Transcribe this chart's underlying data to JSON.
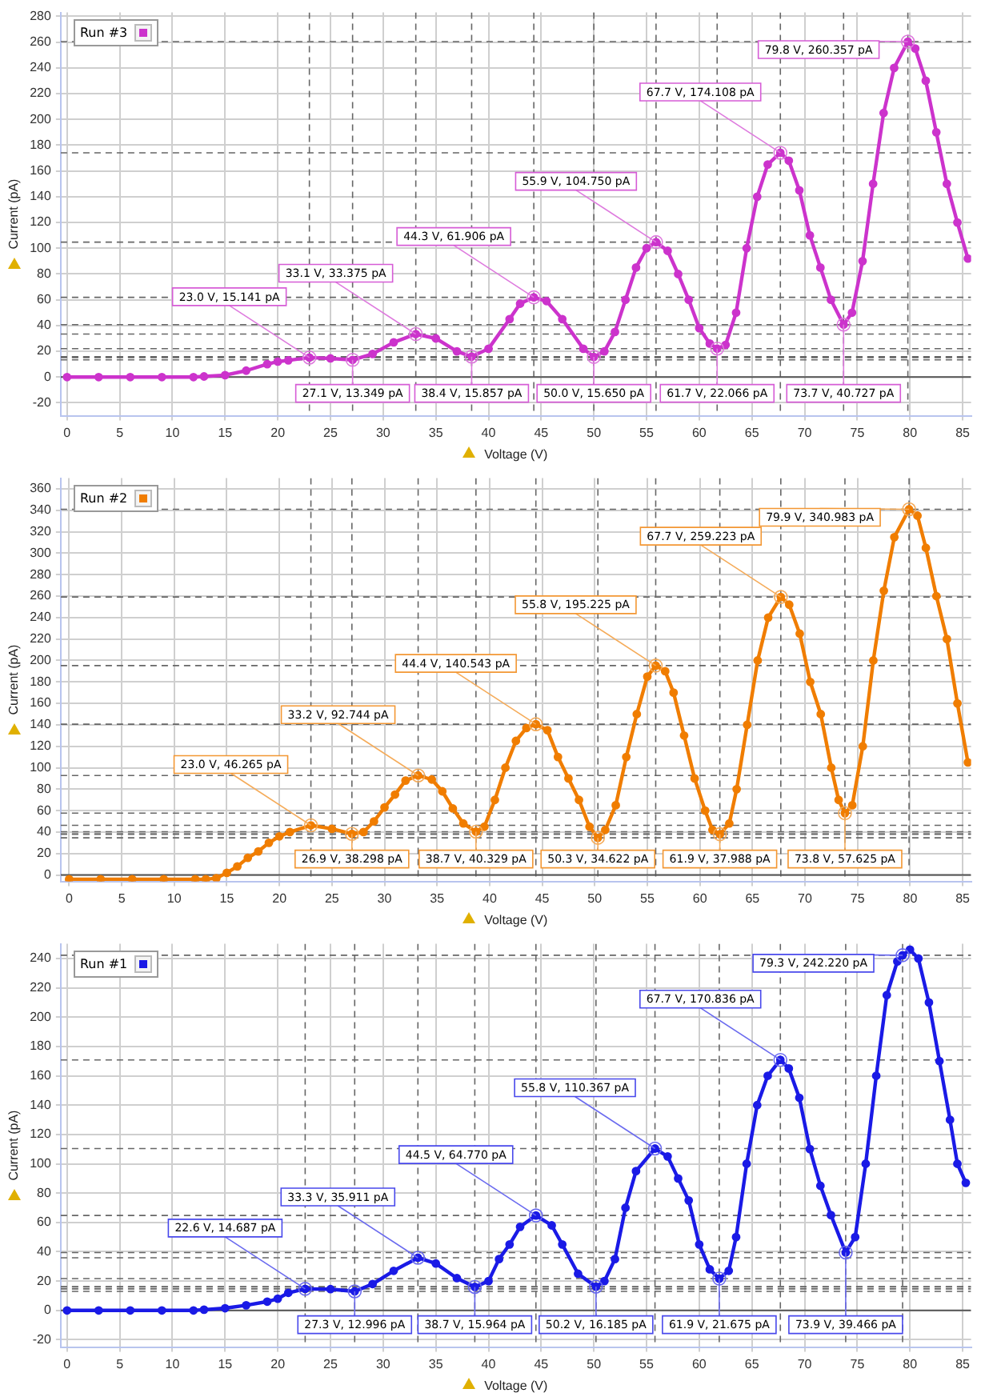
{
  "chart_data": [
    {
      "type": "line",
      "xlabel": "Voltage (V)",
      "ylabel": "Current (pA)",
      "xlim": [
        -0.6,
        85.8
      ],
      "ylim": [
        -30,
        283
      ],
      "xticks": [
        0,
        5,
        10,
        15,
        20,
        25,
        30,
        35,
        40,
        45,
        50,
        55,
        60,
        65,
        70,
        75,
        80,
        85
      ],
      "yticks": [
        -20,
        0,
        20,
        40,
        60,
        80,
        100,
        120,
        140,
        160,
        180,
        200,
        220,
        240,
        260,
        280
      ],
      "grid": true,
      "legend": "top left",
      "marker": "circle",
      "line_style": "solid",
      "x": [
        0,
        3,
        6,
        9,
        12,
        13,
        15,
        17,
        19,
        20,
        21,
        23,
        25,
        27.1,
        29,
        31,
        33.1,
        35,
        37,
        38.4,
        40,
        42,
        43,
        44.3,
        45.5,
        47,
        49,
        50,
        51,
        52,
        53,
        54,
        55,
        55.9,
        57,
        58,
        59,
        60,
        61,
        61.7,
        62.5,
        63.5,
        64.5,
        65.5,
        66.5,
        67.7,
        68.5,
        69.5,
        70.5,
        71.5,
        72.5,
        73.7,
        74.5,
        75.5,
        76.5,
        77.5,
        78.5,
        79.8,
        80.5,
        81.5,
        82.5,
        83.5,
        84.5,
        85.5
      ],
      "series": [
        {
          "name": "Run #3",
          "color": "#cc33cc",
          "values": [
            0,
            0,
            0,
            0,
            0,
            0.5,
            1.5,
            5,
            10,
            12,
            13,
            15.141,
            14.5,
            13.349,
            18,
            27,
            33.375,
            30,
            20,
            15.857,
            22,
            45,
            57,
            61.906,
            59,
            45,
            22,
            15.65,
            20,
            35,
            60,
            85,
            100,
            104.75,
            98,
            80,
            60,
            38,
            26,
            22.066,
            25,
            50,
            100,
            140,
            165,
            174.108,
            168,
            145,
            110,
            85,
            60,
            40.727,
            50,
            90,
            150,
            205,
            240,
            260.357,
            255,
            230,
            190,
            150,
            120,
            92
          ]
        }
      ],
      "ref_lines": [
        {
          "axis": "y",
          "value": 0,
          "line_style": "solid"
        }
      ],
      "annotations": [
        {
          "text": "23.0 V, 15.141 pA",
          "x": 23.0,
          "y": 15.141
        },
        {
          "text": "27.1 V, 13.349 pA",
          "x": 27.1,
          "y": 13.349
        },
        {
          "text": "33.1 V, 33.375 pA",
          "x": 33.1,
          "y": 33.375
        },
        {
          "text": "38.4 V, 15.857 pA",
          "x": 38.4,
          "y": 15.857
        },
        {
          "text": "44.3 V, 61.906 pA",
          "x": 44.3,
          "y": 61.906
        },
        {
          "text": "50.0 V, 15.650 pA",
          "x": 50.0,
          "y": 15.65
        },
        {
          "text": "55.9 V, 104.750 pA",
          "x": 55.9,
          "y": 104.75
        },
        {
          "text": "61.7 V, 22.066 pA",
          "x": 61.7,
          "y": 22.066
        },
        {
          "text": "67.7 V, 174.108 pA",
          "x": 67.7,
          "y": 174.108
        },
        {
          "text": "73.7 V, 40.727 pA",
          "x": 73.7,
          "y": 40.727
        },
        {
          "text": "79.8 V, 260.357 pA",
          "x": 79.8,
          "y": 260.357
        }
      ]
    },
    {
      "type": "line",
      "xlabel": "Voltage (V)",
      "ylabel": "Current (pA)",
      "xlim": [
        -0.8,
        85.8
      ],
      "ylim": [
        -6,
        370
      ],
      "xticks": [
        0,
        5,
        10,
        15,
        20,
        25,
        30,
        35,
        40,
        45,
        50,
        55,
        60,
        65,
        70,
        75,
        80,
        85
      ],
      "yticks": [
        0,
        20,
        40,
        60,
        80,
        100,
        120,
        140,
        160,
        180,
        200,
        220,
        240,
        260,
        280,
        300,
        320,
        340,
        360
      ],
      "grid": true,
      "legend": "top left",
      "marker": "circle",
      "line_style": "solid",
      "x": [
        0,
        3,
        6,
        9,
        12,
        13,
        14,
        15,
        16,
        17,
        18,
        19,
        20,
        21,
        23,
        25,
        26.9,
        28,
        29,
        30,
        31,
        32,
        33.2,
        34.5,
        35.5,
        36.5,
        37.5,
        38.7,
        39.5,
        40.5,
        41.5,
        42.5,
        43.5,
        44.4,
        45.5,
        46.5,
        47.5,
        48.5,
        49.5,
        50.3,
        51,
        52,
        53,
        54,
        55,
        55.8,
        56.7,
        57.5,
        58.5,
        59.5,
        60.5,
        61.2,
        61.9,
        62.8,
        63.5,
        64.5,
        65.5,
        66.5,
        67.7,
        68.5,
        69.5,
        70.5,
        71.5,
        72.5,
        73.2,
        73.8,
        74.5,
        75.5,
        76.5,
        77.5,
        78.5,
        79.9,
        80.7,
        81.5,
        82.5,
        83.5,
        84.5,
        85.5
      ],
      "series": [
        {
          "name": "Run #2",
          "color": "#f07d00",
          "values": [
            -4,
            -4,
            -4,
            -4,
            -4,
            -4,
            -3,
            2,
            8,
            16,
            22,
            30,
            36,
            40,
            46.265,
            43,
            38.298,
            40,
            50,
            63,
            75,
            88,
            92.744,
            89,
            78,
            62,
            48,
            40.329,
            45,
            70,
            100,
            125,
            137,
            140.543,
            135,
            110,
            90,
            70,
            45,
            34.622,
            42,
            65,
            110,
            150,
            185,
            195.225,
            190,
            170,
            130,
            90,
            60,
            42,
            37.988,
            48,
            80,
            140,
            200,
            240,
            259.223,
            252,
            225,
            180,
            150,
            100,
            70,
            57.625,
            65,
            120,
            200,
            265,
            315,
            340.983,
            335,
            305,
            260,
            220,
            160,
            105
          ]
        }
      ],
      "ref_lines": [
        {
          "axis": "y",
          "value": 0,
          "line_style": "solid"
        }
      ],
      "annotations": [
        {
          "text": "23.0 V, 46.265 pA",
          "x": 23.0,
          "y": 46.265
        },
        {
          "text": "26.9 V, 38.298 pA",
          "x": 26.9,
          "y": 38.298
        },
        {
          "text": "33.2 V, 92.744 pA",
          "x": 33.2,
          "y": 92.744
        },
        {
          "text": "38.7 V, 40.329 pA",
          "x": 38.7,
          "y": 40.329
        },
        {
          "text": "44.4 V, 140.543 pA",
          "x": 44.4,
          "y": 140.543
        },
        {
          "text": "50.3 V, 34.622 pA",
          "x": 50.3,
          "y": 34.622
        },
        {
          "text": "55.8 V, 195.225 pA",
          "x": 55.8,
          "y": 195.225
        },
        {
          "text": "61.9 V, 37.988 pA",
          "x": 61.9,
          "y": 37.988
        },
        {
          "text": "67.7 V, 259.223 pA",
          "x": 67.7,
          "y": 259.223
        },
        {
          "text": "73.8 V, 57.625 pA",
          "x": 73.8,
          "y": 57.625
        },
        {
          "text": "79.9 V, 340.983 pA",
          "x": 79.9,
          "y": 340.983
        }
      ]
    },
    {
      "type": "line",
      "xlabel": "Voltage (V)",
      "ylabel": "Current (pA)",
      "xlim": [
        -0.6,
        85.8
      ],
      "ylim": [
        -25,
        250
      ],
      "xticks": [
        0,
        5,
        10,
        15,
        20,
        25,
        30,
        35,
        40,
        45,
        50,
        55,
        60,
        65,
        70,
        75,
        80,
        85
      ],
      "yticks": [
        -20,
        0,
        20,
        40,
        60,
        80,
        100,
        120,
        140,
        160,
        180,
        200,
        220,
        240
      ],
      "grid": true,
      "legend": "top left",
      "marker": "circle",
      "line_style": "solid",
      "x": [
        0,
        3,
        6,
        9,
        12,
        13,
        15,
        17,
        19,
        20,
        21,
        22.6,
        25,
        27.3,
        29,
        31,
        33.3,
        35,
        37,
        38.7,
        40,
        41,
        42,
        43,
        44.5,
        46,
        47,
        48.5,
        50.2,
        51,
        52,
        53,
        54,
        55.8,
        57,
        58,
        59,
        60,
        61,
        61.9,
        62.8,
        63.5,
        64.5,
        65.5,
        66.5,
        67.7,
        68.5,
        69.5,
        70.5,
        71.5,
        72.5,
        73.9,
        74.8,
        75.8,
        76.8,
        77.8,
        78.8,
        79.3,
        80,
        80.8,
        81.8,
        82.8,
        83.8,
        84.5,
        85.3
      ],
      "series": [
        {
          "name": "Run #1",
          "color": "#1a1ae6",
          "values": [
            0,
            0,
            0,
            0,
            0,
            0.5,
            1.5,
            3.5,
            6,
            8,
            12,
            14.687,
            14.5,
            12.996,
            18,
            27,
            35.911,
            32,
            22,
            15.964,
            20,
            35,
            45,
            57,
            64.77,
            58,
            45,
            25,
            16.185,
            20,
            35,
            70,
            95,
            110.367,
            105,
            90,
            75,
            45,
            28,
            21.675,
            27,
            50,
            100,
            140,
            160,
            170.836,
            165,
            145,
            110,
            85,
            65,
            39.466,
            50,
            100,
            160,
            215,
            238,
            242.22,
            246,
            240,
            210,
            170,
            130,
            100,
            87
          ]
        }
      ],
      "ref_lines": [
        {
          "axis": "y",
          "value": 0,
          "line_style": "solid"
        }
      ],
      "annotations": [
        {
          "text": "22.6 V, 14.687 pA",
          "x": 22.6,
          "y": 14.687
        },
        {
          "text": "27.3 V, 12.996 pA",
          "x": 27.3,
          "y": 12.996
        },
        {
          "text": "33.3 V, 35.911 pA",
          "x": 33.3,
          "y": 35.911
        },
        {
          "text": "38.7 V, 15.964 pA",
          "x": 38.7,
          "y": 15.964
        },
        {
          "text": "44.5 V, 64.770 pA",
          "x": 44.5,
          "y": 64.77
        },
        {
          "text": "50.2 V, 16.185 pA",
          "x": 50.2,
          "y": 16.185
        },
        {
          "text": "55.8 V, 110.367 pA",
          "x": 55.8,
          "y": 110.367
        },
        {
          "text": "61.9 V, 21.675 pA",
          "x": 61.9,
          "y": 21.675
        },
        {
          "text": "67.7 V, 170.836 pA",
          "x": 67.7,
          "y": 170.836
        },
        {
          "text": "73.9 V, 39.466 pA",
          "x": 73.9,
          "y": 39.466
        },
        {
          "text": "79.3 V, 242.220 pA",
          "x": 79.3,
          "y": 242.22
        }
      ]
    }
  ]
}
